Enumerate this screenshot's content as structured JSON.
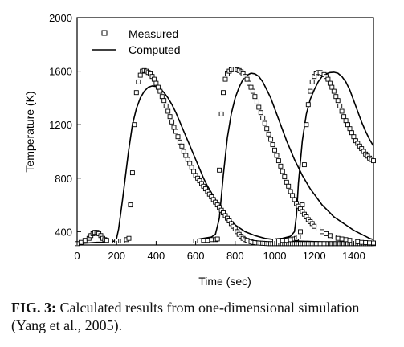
{
  "chart_data": {
    "type": "line",
    "xlabel": "Time (sec)",
    "ylabel": "Temperature (K)",
    "xlim": [
      0,
      1500
    ],
    "ylim": [
      300,
      2000
    ],
    "xticks": [
      0,
      200,
      400,
      600,
      800,
      1000,
      1200,
      1400
    ],
    "yticks": [
      400,
      800,
      1200,
      1600,
      2000
    ],
    "legend_position": "top-left",
    "series": [
      {
        "name": "Measured",
        "style": "open-square-markers",
        "curves": [
          {
            "x": [
              0,
              20,
              40,
              60,
              70,
              80,
              90,
              100,
              110,
              120,
              130,
              140,
              150,
              170,
              200,
              230,
              250,
              262,
              270,
              280,
              290,
              300,
              310,
              320,
              330,
              340,
              350,
              360,
              370,
              380,
              390,
              400,
              410,
              420,
              430,
              440,
              450,
              460,
              470,
              480,
              490,
              500,
              510,
              520,
              530,
              540,
              550,
              560,
              570,
              580,
              590,
              600,
              610,
              620,
              630,
              640,
              650,
              660,
              670,
              680,
              690,
              700,
              710,
              720,
              730,
              740,
              750,
              760,
              770,
              780,
              790,
              800,
              810,
              820,
              830,
              840,
              850,
              860,
              870,
              880,
              890,
              900,
              910,
              920,
              930,
              940,
              950,
              960,
              970,
              980,
              990,
              1000,
              1010,
              1020,
              1030,
              1040,
              1050,
              1060,
              1070,
              1080,
              1090,
              1100,
              1110,
              1120,
              1130,
              1140,
              1150,
              1160,
              1170,
              1180,
              1190,
              1200,
              1210,
              1220,
              1230,
              1240,
              1250,
              1260,
              1270,
              1280,
              1290,
              1300,
              1310,
              1320,
              1330,
              1340,
              1350,
              1360,
              1370,
              1380,
              1390,
              1400,
              1410,
              1420,
              1430,
              1440,
              1450,
              1460,
              1470,
              1480,
              1490,
              1500
            ],
            "y": [
              310,
              320,
              335,
              350,
              370,
              385,
              395,
              395,
              385,
              370,
              350,
              340,
              335,
              330,
              330,
              330,
              340,
              350,
              600,
              840,
              1200,
              1440,
              1520,
              1570,
              1600,
              1605,
              1600,
              1590,
              1580,
              1560,
              1540,
              1510,
              1480,
              1450,
              1410,
              1380,
              1340,
              1300,
              1260,
              1220,
              1180,
              1150,
              1110,
              1070,
              1040,
              1000,
              970,
              940,
              910,
              880,
              850,
              820,
              800,
              780,
              760,
              740,
              720,
              700,
              680,
              660,
              640,
              620,
              600,
              580,
              560,
              540,
              520,
              500,
              480,
              460,
              440,
              420,
              400,
              380,
              365,
              350,
              340,
              335,
              330,
              325,
              320,
              318,
              316,
              315,
              314,
              313,
              312,
              311,
              310,
              310,
              310,
              310,
              310,
              310,
              310,
              310,
              310,
              310,
              310,
              310,
              310,
              310,
              310,
              310,
              310,
              310,
              310,
              310,
              310,
              310,
              310,
              310,
              310,
              310,
              310,
              310,
              310,
              310,
              310,
              310,
              310,
              310,
              310,
              310,
              310,
              310,
              310,
              310,
              310,
              310,
              310,
              310,
              310,
              310,
              310,
              310,
              310,
              310,
              310,
              310,
              310,
              310
            ]
          },
          {
            "x": [
              600,
              620,
              640,
              660,
              680,
              700,
              710,
              720,
              730,
              740,
              750,
              760,
              770,
              780,
              790,
              800,
              810,
              820,
              830,
              840,
              850,
              860,
              870,
              880,
              890,
              900,
              910,
              920,
              930,
              940,
              950,
              960,
              970,
              980,
              990,
              1000,
              1010,
              1020,
              1030,
              1040,
              1050,
              1060,
              1070,
              1080,
              1090,
              1100,
              1110,
              1120,
              1130,
              1140,
              1150,
              1160,
              1170,
              1180,
              1190,
              1200,
              1220,
              1240,
              1260,
              1280,
              1300,
              1320,
              1340,
              1360,
              1380,
              1400,
              1420,
              1440,
              1460,
              1480,
              1500
            ],
            "y": [
              330,
              330,
              335,
              335,
              340,
              340,
              345,
              860,
              1280,
              1440,
              1540,
              1580,
              1600,
              1610,
              1615,
              1615,
              1610,
              1605,
              1595,
              1580,
              1560,
              1540,
              1510,
              1480,
              1450,
              1410,
              1370,
              1330,
              1290,
              1250,
              1210,
              1170,
              1130,
              1090,
              1050,
              1010,
              970,
              930,
              890,
              850,
              810,
              770,
              740,
              700,
              670,
              640,
              610,
              590,
              570,
              550,
              530,
              510,
              490,
              475,
              460,
              440,
              420,
              400,
              385,
              370,
              360,
              350,
              345,
              340,
              335,
              330,
              325,
              320,
              318,
              316,
              315
            ]
          },
          {
            "x": [
              1000,
              1020,
              1040,
              1060,
              1080,
              1100,
              1110,
              1120,
              1130,
              1140,
              1150,
              1160,
              1170,
              1180,
              1190,
              1200,
              1210,
              1220,
              1230,
              1240,
              1250,
              1260,
              1270,
              1280,
              1290,
              1300,
              1310,
              1320,
              1330,
              1340,
              1350,
              1360,
              1370,
              1380,
              1390,
              1400,
              1410,
              1420,
              1430,
              1440,
              1450,
              1460,
              1470,
              1480,
              1490,
              1500
            ],
            "y": [
              330,
              330,
              335,
              335,
              340,
              345,
              350,
              360,
              400,
              600,
              900,
              1200,
              1350,
              1450,
              1520,
              1560,
              1580,
              1590,
              1590,
              1585,
              1575,
              1560,
              1540,
              1510,
              1480,
              1450,
              1410,
              1380,
              1340,
              1300,
              1260,
              1230,
              1200,
              1170,
              1140,
              1110,
              1080,
              1060,
              1040,
              1020,
              1000,
              980,
              965,
              950,
              940,
              930
            ]
          }
        ]
      },
      {
        "name": "Computed",
        "style": "solid-line",
        "curves": [
          {
            "x": [
              0,
              50,
              100,
              150,
              190,
              200,
              210,
              230,
              260,
              280,
              300,
              320,
              340,
              360,
              380,
              400,
              420,
              440,
              460,
              480,
              500,
              520,
              540,
              560,
              580,
              600,
              620,
              640,
              660,
              680,
              700,
              720,
              740,
              760,
              780,
              800,
              850,
              900,
              950,
              1000,
              1100,
              1200,
              1300,
              1400,
              1500
            ],
            "y": [
              310,
              315,
              320,
              320,
              330,
              350,
              420,
              640,
              1000,
              1200,
              1320,
              1400,
              1450,
              1480,
              1490,
              1485,
              1470,
              1440,
              1400,
              1350,
              1290,
              1220,
              1150,
              1080,
              1010,
              940,
              870,
              800,
              740,
              690,
              640,
              590,
              550,
              510,
              480,
              450,
              400,
              370,
              350,
              340,
              330,
              325,
              320,
              318,
              316
            ]
          },
          {
            "x": [
              600,
              640,
              680,
              700,
              720,
              740,
              760,
              780,
              800,
              820,
              840,
              860,
              880,
              900,
              920,
              940,
              960,
              980,
              1000,
              1020,
              1040,
              1060,
              1080,
              1100,
              1120,
              1140,
              1160,
              1180,
              1200,
              1220,
              1240,
              1260,
              1280,
              1300,
              1320,
              1340,
              1360,
              1380,
              1400,
              1420,
              1440,
              1460,
              1480,
              1500
            ],
            "y": [
              340,
              350,
              360,
              380,
              500,
              820,
              1100,
              1280,
              1400,
              1480,
              1540,
              1570,
              1585,
              1580,
              1560,
              1520,
              1460,
              1400,
              1320,
              1240,
              1160,
              1080,
              1010,
              940,
              880,
              820,
              770,
              720,
              680,
              640,
              600,
              570,
              540,
              510,
              490,
              470,
              450,
              430,
              410,
              395,
              380,
              365,
              350,
              340
            ]
          },
          {
            "x": [
              1000,
              1040,
              1080,
              1100,
              1110,
              1120,
              1140,
              1160,
              1180,
              1200,
              1220,
              1240,
              1260,
              1280,
              1300,
              1320,
              1340,
              1360,
              1380,
              1400,
              1420,
              1440,
              1460,
              1480,
              1500
            ],
            "y": [
              345,
              350,
              365,
              400,
              520,
              760,
              1080,
              1280,
              1390,
              1460,
              1520,
              1560,
              1580,
              1590,
              1592,
              1585,
              1560,
              1520,
              1460,
              1380,
              1300,
              1220,
              1150,
              1090,
              1040
            ]
          }
        ]
      }
    ]
  },
  "caption": {
    "label": "FIG. 3:",
    "text": " Calculated results from one-dimensional simulation (Yang et al., 2005)."
  }
}
